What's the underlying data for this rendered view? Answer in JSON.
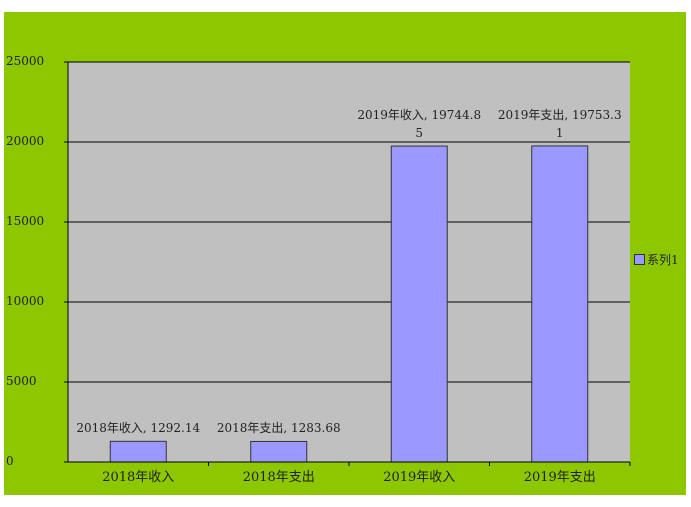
{
  "chart_data": {
    "type": "bar",
    "title": "",
    "xlabel": "",
    "ylabel": "",
    "categories": [
      "2018年收入",
      "2018年支出",
      "2019年收入",
      "2019年支出"
    ],
    "series": [
      {
        "name": "系列1",
        "values": [
          1292.14,
          1283.68,
          19744.85,
          19753.31
        ],
        "data_labels": [
          [
            "2018年收入, 1292.14"
          ],
          [
            "2018年支出, 1283.68"
          ],
          [
            "2019年收入, 19744.8",
            "5"
          ],
          [
            "2019年支出, 19753.3",
            "1"
          ]
        ]
      }
    ],
    "ylim": [
      0,
      25000
    ],
    "yticks": [
      "0",
      "5000",
      "10000",
      "15000",
      "20000",
      "25000"
    ],
    "ytick_values": [
      0,
      5000,
      10000,
      15000,
      20000,
      25000
    ],
    "grid": true,
    "legend_position": "right",
    "colors": {
      "bar": "#9999ff",
      "plot_background": "#c0c0c0",
      "chart_background": "#8dc700",
      "gridline": "#000000"
    }
  }
}
